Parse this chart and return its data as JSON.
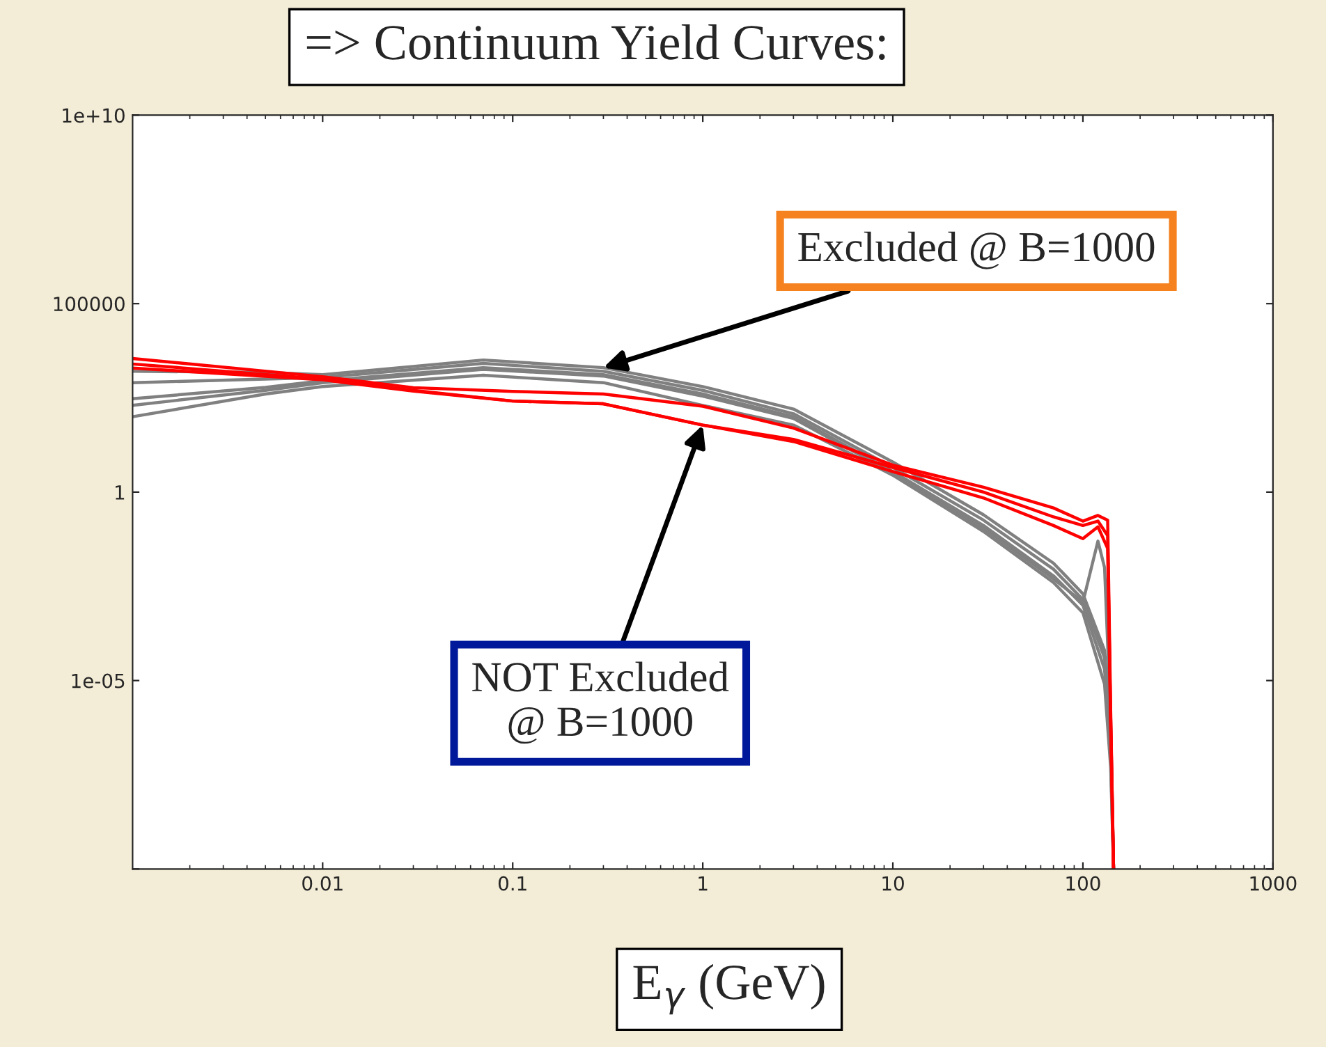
{
  "chart_data": {
    "type": "line",
    "title": "=> Continuum Yield Curves:",
    "xlabel": "E$_{γ}$ (GeV)",
    "log": "xy",
    "grid": false,
    "legend": false,
    "marker": "none",
    "line_style": "solid",
    "xlim": [
      0.001,
      1000
    ],
    "ylim": [
      1e-10,
      10000000000.0
    ],
    "xticks": [
      0.01,
      0.1,
      1,
      10,
      100,
      1000
    ],
    "yticks": [
      {
        "value": 1e-10,
        "label": null
      },
      {
        "value": 1e-05,
        "label": "1e-05"
      },
      {
        "value": 1,
        "label": "1"
      },
      {
        "value": 100000,
        "label": "100000"
      },
      {
        "value": 10000000000.0,
        "label": "1e+10"
      }
    ],
    "series": [
      {
        "color": "#808080",
        "x": [
          0.001,
          0.005,
          0.01,
          0.07,
          0.3,
          1,
          3,
          10,
          30,
          70,
          100,
          130,
          140,
          145
        ],
        "values": [
          1600,
          1500,
          1300,
          3200,
          2000,
          630,
          160,
          6.3,
          0.25,
          0.013,
          0.002,
          6.3e-05,
          4e-07,
          1e-10
        ]
      },
      {
        "color": "#808080",
        "x": [
          0.001,
          0.005,
          0.01,
          0.07,
          0.3,
          1,
          3,
          10,
          30,
          70,
          100,
          130,
          140,
          145
        ],
        "values": [
          800,
          1000,
          1100,
          2600,
          1600,
          500,
          120,
          4.5,
          0.18,
          0.009,
          0.0014,
          4e-05,
          2e-07,
          1e-10
        ]
      },
      {
        "color": "#808080",
        "x": [
          0.001,
          0.005,
          0.01,
          0.07,
          0.3,
          1,
          3,
          10,
          30,
          70,
          100,
          130,
          140,
          145
        ],
        "values": [
          300,
          600,
          900,
          2000,
          1300,
          400,
          100,
          3.5,
          0.13,
          0.006,
          0.001,
          2e-05,
          1e-07,
          1e-10
        ]
      },
      {
        "color": "#808080",
        "x": [
          0.001,
          0.005,
          0.01,
          0.07,
          0.3,
          1,
          3,
          10,
          30,
          70,
          100,
          130,
          140,
          145
        ],
        "values": [
          100,
          400,
          630,
          1260,
          800,
          200,
          60,
          2.8,
          0.09,
          0.004,
          0.00063,
          8e-06,
          5e-08,
          1e-10
        ]
      },
      {
        "color": "#808080",
        "x": [
          0.001,
          0.005,
          0.01,
          0.07,
          0.3,
          1,
          3,
          10,
          30,
          70,
          100,
          120,
          130,
          140,
          145
        ],
        "values": [
          200,
          500,
          800,
          1800,
          1200,
          350,
          90,
          3.2,
          0.11,
          0.005,
          0.0012,
          0.05,
          0.01,
          1e-06,
          1e-10
        ]
      },
      {
        "color": "#ff0000",
        "x": [
          0.001,
          0.01,
          0.03,
          0.1,
          0.3,
          1,
          3,
          10,
          30,
          70,
          100,
          120,
          135,
          140,
          145
        ],
        "values": [
          3500,
          1150,
          590,
          470,
          400,
          190,
          50,
          5.2,
          1.35,
          0.38,
          0.17,
          0.24,
          0.18,
          1.6e-06,
          1e-10
        ]
      },
      {
        "color": "#ff0000",
        "x": [
          0.001,
          0.01,
          0.03,
          0.1,
          0.3,
          1,
          3,
          10,
          30,
          70,
          100,
          120,
          135,
          140,
          145
        ],
        "values": [
          2500,
          1000,
          500,
          260,
          220,
          60,
          25,
          4.5,
          1,
          0.22,
          0.13,
          0.17,
          0.07,
          6e-07,
          1e-10
        ]
      },
      {
        "color": "#ff0000",
        "x": [
          0.001,
          0.01,
          0.03,
          0.1,
          0.3,
          1,
          3,
          10,
          30,
          70,
          100,
          120,
          135,
          140,
          145
        ],
        "values": [
          1950,
          950,
          480,
          260,
          220,
          60,
          22,
          3.5,
          0.7,
          0.13,
          0.058,
          0.12,
          0.032,
          1e-06,
          1e-10
        ]
      }
    ],
    "annotations": [
      {
        "text": "Excluded @ B=1000",
        "x": 0.3,
        "y": 2000
      },
      {
        "text": "NOT Excluded\n@ B=1000",
        "x": 1,
        "y": 60
      }
    ]
  }
}
